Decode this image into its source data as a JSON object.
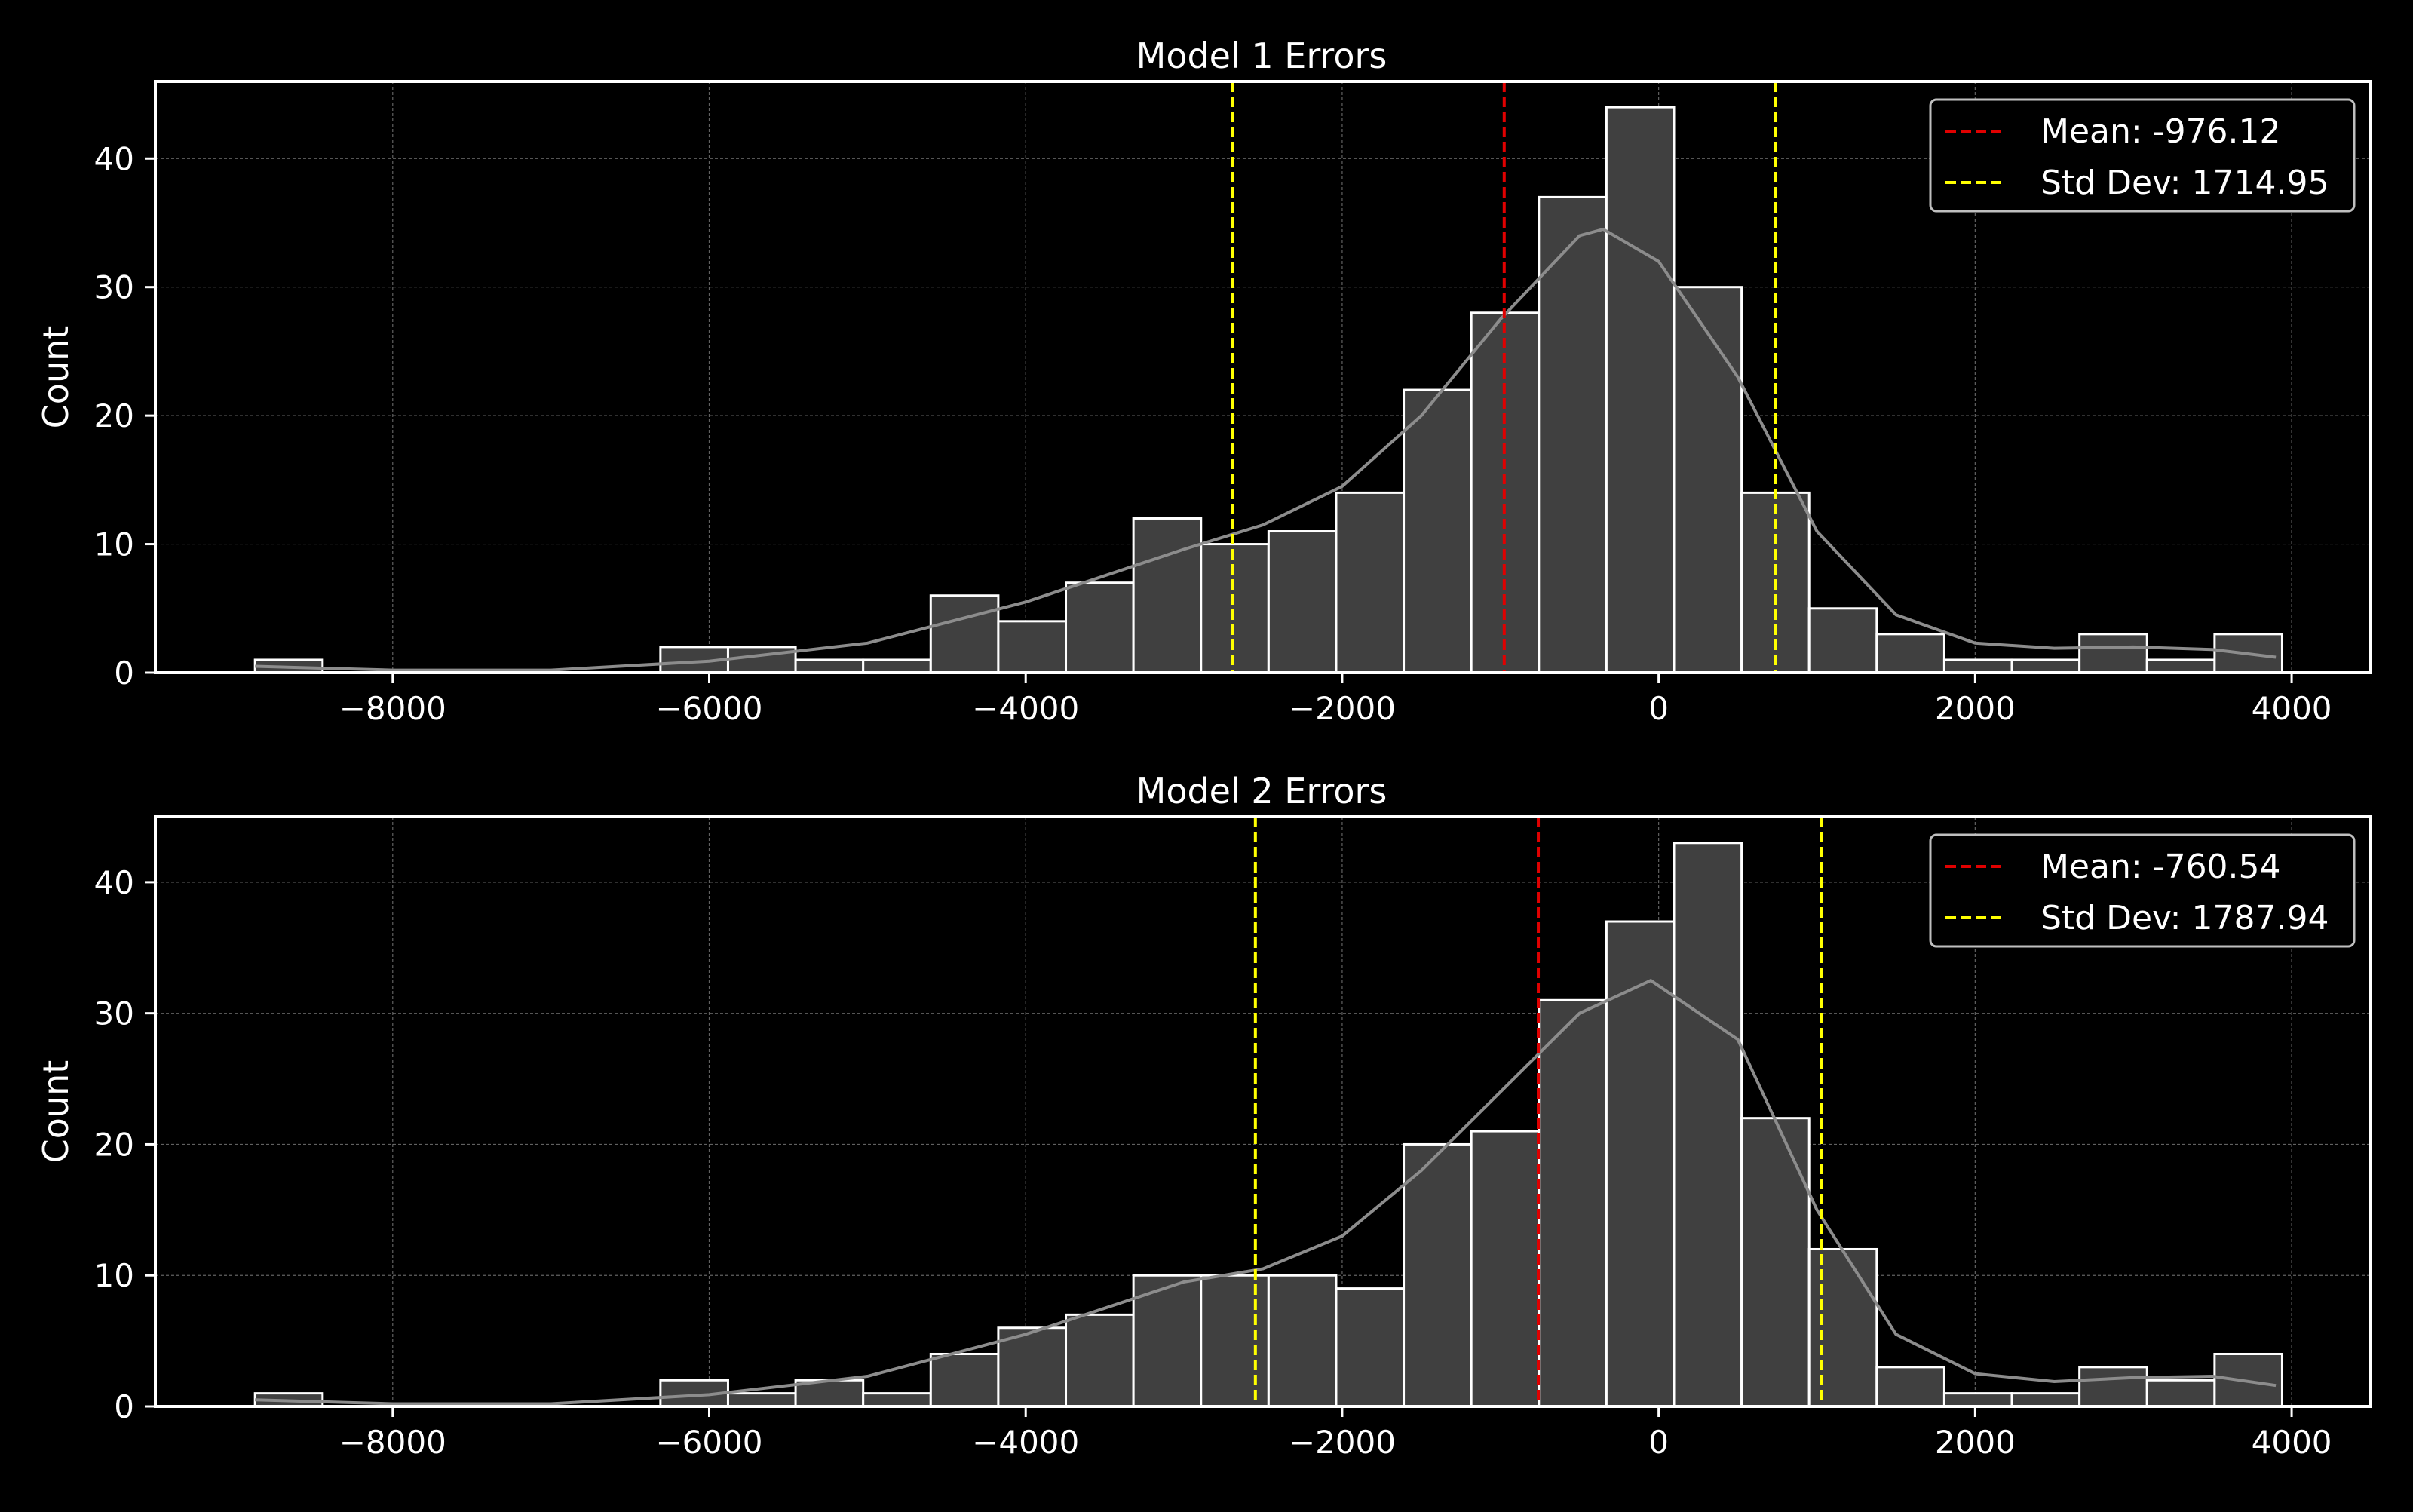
{
  "chart_data": [
    {
      "type": "bar",
      "title": "Model 1 Errors",
      "xlabel": "",
      "ylabel": "Count",
      "xlim": [
        -9500,
        4500
      ],
      "ylim": [
        0,
        46
      ],
      "grid": true,
      "legend_position": "top-right",
      "x_ticks": [
        -8000,
        -6000,
        -4000,
        -2000,
        0,
        2000,
        4000
      ],
      "x_tick_labels": [
        "−8000",
        "−6000",
        "−4000",
        "−2000",
        "0",
        "2000",
        "4000"
      ],
      "y_ticks": [
        0,
        10,
        20,
        30,
        40
      ],
      "y_tick_labels": [
        "0",
        "10",
        "20",
        "30",
        "40"
      ],
      "bin_start": -8870,
      "bin_width": 427,
      "counts": [
        1,
        0,
        0,
        0,
        0,
        0,
        2,
        2,
        1,
        1,
        6,
        4,
        7,
        12,
        10,
        11,
        14,
        22,
        28,
        37,
        44,
        30,
        14,
        5,
        3,
        1,
        1,
        3,
        1,
        3
      ],
      "kde": [
        [
          -8870,
          0.5
        ],
        [
          -8000,
          0.2
        ],
        [
          -7000,
          0.2
        ],
        [
          -6000,
          0.9
        ],
        [
          -5000,
          2.3
        ],
        [
          -4000,
          5.5
        ],
        [
          -3000,
          9.6
        ],
        [
          -2500,
          11.5
        ],
        [
          -2000,
          14.5
        ],
        [
          -1500,
          20
        ],
        [
          -1000,
          27.5
        ],
        [
          -500,
          34
        ],
        [
          -350,
          34.5
        ],
        [
          0,
          32
        ],
        [
          500,
          23
        ],
        [
          1000,
          11
        ],
        [
          1500,
          4.5
        ],
        [
          2000,
          2.3
        ],
        [
          2500,
          1.9
        ],
        [
          3000,
          2.0
        ],
        [
          3500,
          1.8
        ],
        [
          3900,
          1.2
        ]
      ],
      "lines": [
        {
          "name": "Mean: -976.12",
          "x": -976.12,
          "color": "#e00000"
        },
        {
          "name": "Std Dev: 1714.95",
          "x": -2691.07,
          "color": "#ffff00"
        },
        {
          "name": "",
          "x": 738.83,
          "color": "#ffff00"
        }
      ],
      "legend": [
        "Mean: -976.12",
        "Std Dev: 1714.95"
      ]
    },
    {
      "type": "bar",
      "title": "Model 2 Errors",
      "xlabel": "",
      "ylabel": "Count",
      "xlim": [
        -9500,
        4500
      ],
      "ylim": [
        0,
        45
      ],
      "grid": true,
      "legend_position": "top-right",
      "x_ticks": [
        -8000,
        -6000,
        -4000,
        -2000,
        0,
        2000,
        4000
      ],
      "x_tick_labels": [
        "−8000",
        "−6000",
        "−4000",
        "−2000",
        "0",
        "2000",
        "4000"
      ],
      "y_ticks": [
        0,
        10,
        20,
        30,
        40
      ],
      "y_tick_labels": [
        "0",
        "10",
        "20",
        "30",
        "40"
      ],
      "bin_start": -8870,
      "bin_width": 427,
      "counts": [
        1,
        0,
        0,
        0,
        0,
        0,
        2,
        1,
        2,
        1,
        4,
        6,
        7,
        10,
        10,
        10,
        9,
        20,
        21,
        31,
        37,
        43,
        22,
        12,
        3,
        1,
        1,
        3,
        2,
        4
      ],
      "kde": [
        [
          -8870,
          0.5
        ],
        [
          -8000,
          0.2
        ],
        [
          -7000,
          0.2
        ],
        [
          -6000,
          0.9
        ],
        [
          -5000,
          2.3
        ],
        [
          -4000,
          5.5
        ],
        [
          -3000,
          9.5
        ],
        [
          -2500,
          10.5
        ],
        [
          -2000,
          13
        ],
        [
          -1500,
          18
        ],
        [
          -1000,
          24
        ],
        [
          -500,
          30
        ],
        [
          -50,
          32.5
        ],
        [
          500,
          28
        ],
        [
          1000,
          15
        ],
        [
          1500,
          5.5
        ],
        [
          2000,
          2.5
        ],
        [
          2500,
          1.9
        ],
        [
          3000,
          2.2
        ],
        [
          3500,
          2.3
        ],
        [
          3900,
          1.6
        ]
      ],
      "lines": [
        {
          "name": "Mean: -760.54",
          "x": -760.54,
          "color": "#e00000"
        },
        {
          "name": "Std Dev: 1787.94",
          "x": -2548.48,
          "color": "#ffff00"
        },
        {
          "name": "",
          "x": 1027.4,
          "color": "#ffff00"
        }
      ],
      "legend": [
        "Mean: -760.54",
        "Std Dev: 1787.94"
      ]
    }
  ]
}
